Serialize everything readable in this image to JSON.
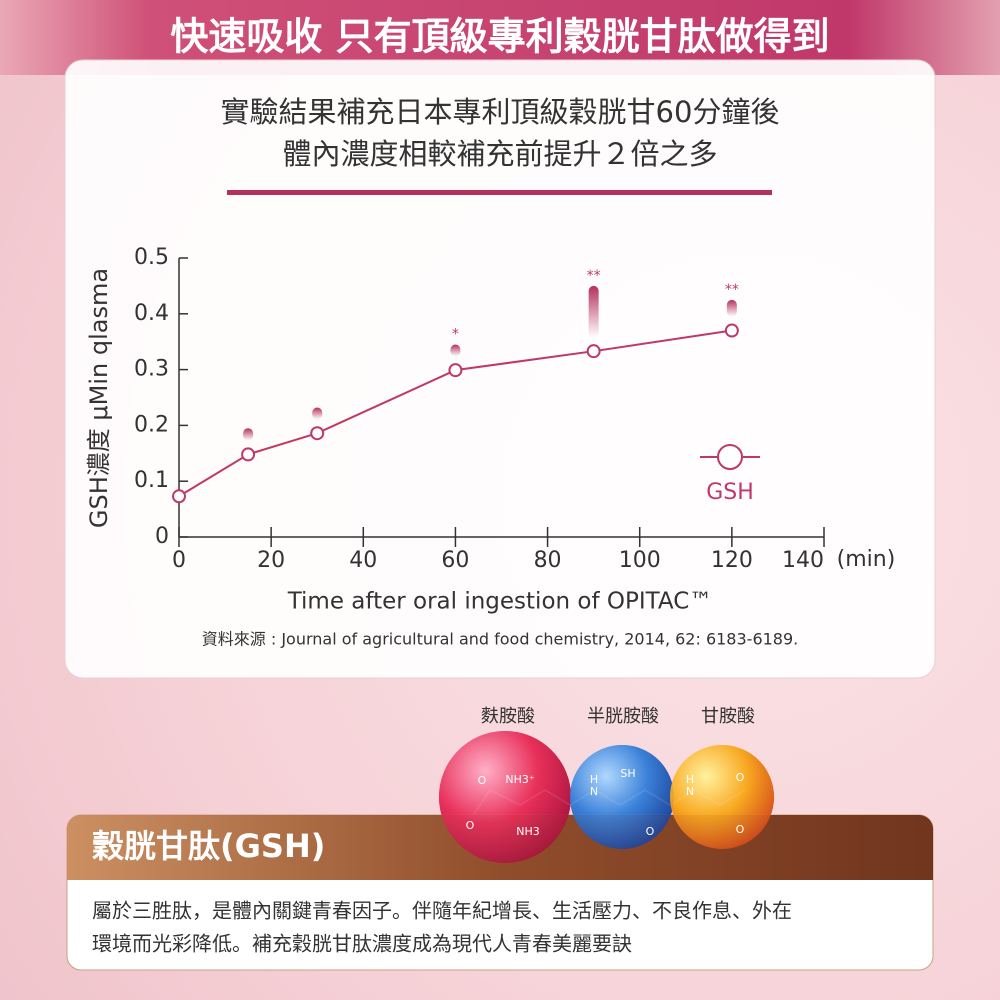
{
  "header": {
    "title": "快速吸收 只有頂級專利穀胱甘肽做得到"
  },
  "chart_data": {
    "type": "line",
    "subtitle": [
      "實驗結果補充日本專利頂級穀胱甘60分鐘後",
      "體內濃度相較補充前提升２倍之多"
    ],
    "x": [
      0,
      15,
      30,
      60,
      90,
      120
    ],
    "series": [
      {
        "name": "GSH",
        "color": "#c0386a",
        "values": [
          0.073,
          0.148,
          0.186,
          0.299,
          0.333,
          0.37
        ],
        "errors": [
          null,
          0.047,
          0.046,
          0.046,
          0.117,
          0.055
        ],
        "annotations": [
          null,
          null,
          null,
          "*",
          "**",
          "**"
        ]
      }
    ],
    "xlim": [
      0,
      140
    ],
    "xticks": [
      0,
      20,
      40,
      60,
      80,
      100,
      120,
      140
    ],
    "x_unit": "(min)",
    "ylim": [
      0,
      0.5
    ],
    "yticks": [
      0,
      0.1,
      0.2,
      0.3,
      0.4,
      0.5
    ],
    "xlabel": "Time after oral ingestion of OPITAC™",
    "ylabel": "GSH濃度  μMin qlasma",
    "legend": "right",
    "source": "資料來源 : Journal of agricultural and food chemistry, 2014, 62: 6183-6189."
  },
  "molecules": {
    "names": [
      "麩胺酸",
      "半胱胺酸",
      "甘胺酸"
    ],
    "chem_labels": [
      "NH3⁺",
      "NH3",
      "O",
      "O",
      "SH",
      "H",
      "N",
      "O",
      "H",
      "N",
      "O",
      "O"
    ]
  },
  "info": {
    "title": "穀胱甘肽(GSH)",
    "lines": [
      "屬於三胜肽，是體內關鍵青春因子。伴隨年紀增長、生活壓力、不良作息、外在",
      "環境而光彩降低。補充穀胱甘肽濃度成為現代人青春美麗要訣"
    ]
  }
}
